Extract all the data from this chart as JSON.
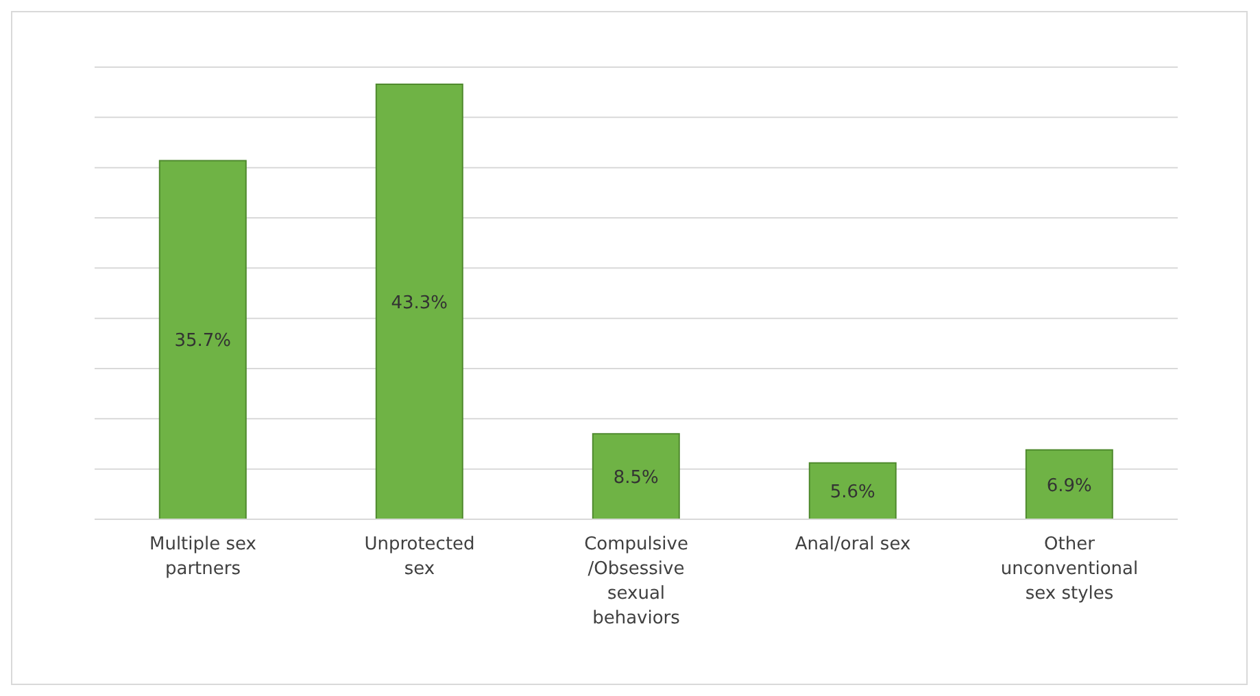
{
  "chart_data": {
    "type": "bar",
    "categories": [
      "Multiple sex partners",
      "Unprotected sex",
      "Compulsive /Obsessive sexual behaviors",
      "Anal/oral sex",
      "Other unconventional sex styles"
    ],
    "values": [
      35.7,
      43.3,
      8.5,
      5.6,
      6.9
    ],
    "value_labels": [
      "35.7%",
      "43.3%",
      "8.5%",
      "5.6%",
      "6.9%"
    ],
    "color": "#6fb345",
    "tick_labels": "x",
    "grid": "y"
  }
}
